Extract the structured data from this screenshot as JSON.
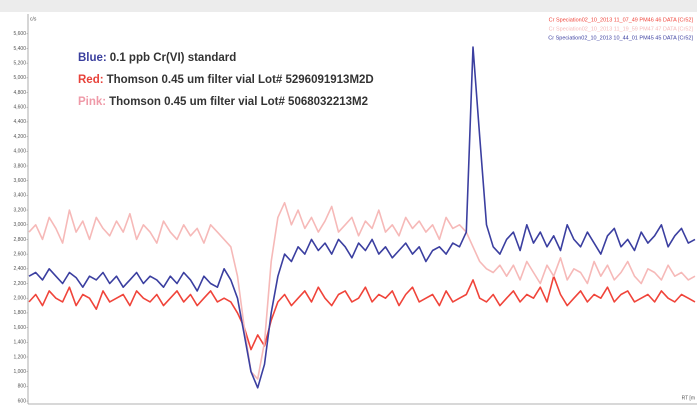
{
  "chart_data": {
    "type": "line",
    "y_label": "c/s",
    "x_label": "RT [m",
    "annotations": [
      {
        "label": "Blue:",
        "text": "0.1 ppb Cr(VI) standard",
        "color": "#3a3f9e"
      },
      {
        "label": "Red:",
        "text": "Thomson 0.45 um filter vial Lot# 5296091913M2D",
        "color": "#e8423a"
      },
      {
        "label": "Pink:",
        "text": "Thomson 0.45 um filter vial Lot# 5068032213M2",
        "color": "#ef9aa8"
      }
    ],
    "ylim": [
      560,
      5760
    ],
    "yticks": [
      {
        "value": 600,
        "label": "600"
      },
      {
        "value": 800,
        "label": "800"
      },
      {
        "value": 1000,
        "label": "1,000"
      },
      {
        "value": 1200,
        "label": "1,200"
      },
      {
        "value": 1400,
        "label": "1,400"
      },
      {
        "value": 1600,
        "label": "1,600"
      },
      {
        "value": 1800,
        "label": "1,800"
      },
      {
        "value": 2000,
        "label": "2,000"
      },
      {
        "value": 2200,
        "label": "2,200"
      },
      {
        "value": 2400,
        "label": "2,400"
      },
      {
        "value": 2600,
        "label": "2,600"
      },
      {
        "value": 2800,
        "label": "2,800"
      },
      {
        "value": 3000,
        "label": "3,000"
      },
      {
        "value": 3200,
        "label": "3,200"
      },
      {
        "value": 3400,
        "label": "3,400"
      },
      {
        "value": 3600,
        "label": "3,600"
      },
      {
        "value": 3800,
        "label": "3,800"
      },
      {
        "value": 4000,
        "label": "4,000"
      },
      {
        "value": 4200,
        "label": "4,200"
      },
      {
        "value": 4400,
        "label": "4,400"
      },
      {
        "value": 4600,
        "label": "4,600"
      },
      {
        "value": 4800,
        "label": "4,800"
      },
      {
        "value": 5000,
        "label": "5,000"
      },
      {
        "value": 5200,
        "label": "5,200"
      },
      {
        "value": 5400,
        "label": "5,400"
      },
      {
        "value": 5600,
        "label": "5,600"
      }
    ],
    "series": [
      {
        "name": "Cr Speciation02_10_2013 11_07_49 PM46 46 DATA [Cr52]",
        "color": "#f0443a",
        "values": [
          1950,
          2050,
          1900,
          2100,
          2000,
          1950,
          2150,
          1900,
          2050,
          2000,
          1850,
          2100,
          1950,
          2000,
          2050,
          1900,
          2100,
          2000,
          1950,
          2050,
          1900,
          2000,
          2100,
          1950,
          2050,
          1900,
          2000,
          2100,
          1950,
          2000,
          1950,
          1800,
          1600,
          1300,
          1500,
          1350,
          1700,
          1950,
          2050,
          1900,
          2000,
          2100,
          1950,
          2150,
          2000,
          1900,
          2050,
          2100,
          1950,
          2000,
          2150,
          1950,
          2050,
          2000,
          2100,
          1900,
          2050,
          2150,
          1950,
          2000,
          2050,
          1900,
          2100,
          1950,
          2000,
          2050,
          2250,
          2000,
          1950,
          2050,
          1900,
          2000,
          2100,
          1950,
          2050,
          2000,
          2150,
          1950,
          2300,
          2050,
          1900,
          2000,
          2100,
          1950,
          2050,
          2000,
          2150,
          1950,
          2050,
          2100,
          1950,
          2000,
          2050,
          1950,
          2100,
          2000,
          1950,
          2050,
          2000,
          1950
        ]
      },
      {
        "name": "Cr Speciation02_10_2013 11_19_59 PM47 47 DATA [Cr52]",
        "color": "#f6b9b8",
        "values": [
          2900,
          3000,
          2800,
          3100,
          2950,
          2750,
          3200,
          2900,
          3050,
          2800,
          3100,
          2950,
          2850,
          3050,
          2900,
          3150,
          2800,
          3000,
          2900,
          2750,
          3050,
          2900,
          2800,
          3000,
          2850,
          2950,
          2750,
          3000,
          2900,
          2800,
          2700,
          2300,
          1600,
          1000,
          900,
          1400,
          2500,
          3100,
          3300,
          3000,
          3200,
          2950,
          3100,
          2900,
          3050,
          3250,
          2900,
          3000,
          3100,
          2850,
          3050,
          2950,
          3200,
          2900,
          3000,
          2850,
          3100,
          2950,
          3050,
          2900,
          3000,
          2800,
          3100,
          2950,
          3000,
          2900,
          2700,
          2500,
          2400,
          2350,
          2450,
          2300,
          2450,
          2250,
          2500,
          2350,
          2200,
          2450,
          2300,
          2550,
          2250,
          2400,
          2350,
          2200,
          2500,
          2300,
          2450,
          2250,
          2350,
          2500,
          2300,
          2200,
          2400,
          2350,
          2250,
          2450,
          2300,
          2350,
          2250,
          2300
        ]
      },
      {
        "name": "Cr Speciation02_10_2013 10_44_01 PM45 45 DATA [Cr52]",
        "color": "#3b3fa0",
        "values": [
          2300,
          2350,
          2250,
          2400,
          2300,
          2200,
          2350,
          2280,
          2150,
          2300,
          2250,
          2350,
          2200,
          2300,
          2150,
          2250,
          2350,
          2200,
          2300,
          2250,
          2150,
          2300,
          2200,
          2350,
          2250,
          2100,
          2300,
          2200,
          2150,
          2400,
          2250,
          2000,
          1500,
          1000,
          780,
          1100,
          1800,
          2300,
          2600,
          2500,
          2700,
          2600,
          2800,
          2650,
          2750,
          2600,
          2800,
          2700,
          2550,
          2750,
          2650,
          2800,
          2600,
          2700,
          2550,
          2650,
          2750,
          2600,
          2700,
          2500,
          2650,
          2700,
          2600,
          2750,
          2700,
          2900,
          5420,
          4200,
          3000,
          2700,
          2600,
          2800,
          2900,
          2650,
          3000,
          2750,
          2900,
          2700,
          2850,
          2650,
          3000,
          2800,
          2700,
          2900,
          2750,
          2600,
          2850,
          2950,
          2700,
          2800,
          2650,
          2900,
          2750,
          2850,
          3000,
          2700,
          2850,
          2950,
          2750,
          2800
        ]
      }
    ]
  }
}
